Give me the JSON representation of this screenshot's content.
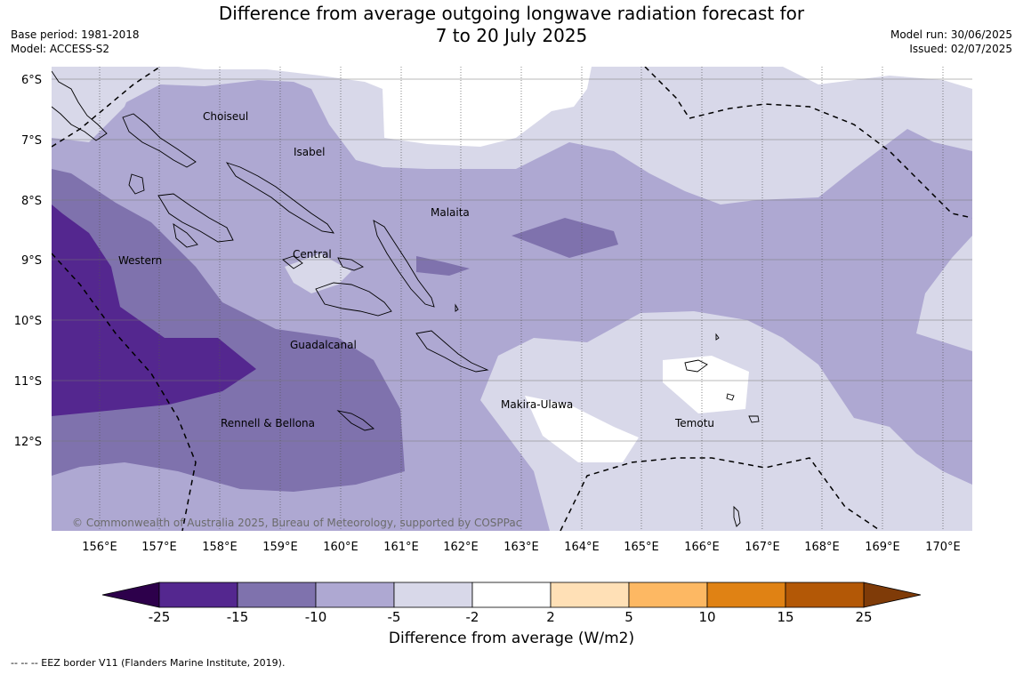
{
  "header": {
    "title_line1": "Difference from average outgoing longwave radiation forecast for",
    "title_line2": "7 to 20 July 2025",
    "base_period": "Base period: 1981-2018",
    "model": "Model: ACCESS-S2",
    "model_run": "Model run: 30/06/2025",
    "issued": "Issued: 02/07/2025"
  },
  "map": {
    "lat_labels": [
      "6°S",
      "7°S",
      "8°S",
      "9°S",
      "10°S",
      "11°S",
      "12°S"
    ],
    "lon_labels": [
      "156°E",
      "157°E",
      "158°E",
      "159°E",
      "160°E",
      "161°E",
      "162°E",
      "163°E",
      "164°E",
      "165°E",
      "166°E",
      "167°E",
      "168°E",
      "169°E",
      "170°E"
    ],
    "region_labels": {
      "choiseul": "Choiseul",
      "isabel": "Isabel",
      "malaita": "Malaita",
      "central": "Central",
      "western": "Western",
      "guadalcanal": "Guadalcanal",
      "makira": "Makira-Ulawa",
      "temotu": "Temotu",
      "rennell": "Rennell & Bellona"
    },
    "copyright": "© Commonwealth of Australia 2025, Bureau of Meteorology, supported by COSPPac"
  },
  "colorbar": {
    "ticks": [
      "-25",
      "-15",
      "-10",
      "-5",
      "-2",
      "2",
      "5",
      "10",
      "15",
      "25"
    ],
    "colors": [
      "#54278f",
      "#7f72ad",
      "#aea8d2",
      "#d8d8e9",
      "#ffffff",
      "#ffe0b6",
      "#fdb863",
      "#e08214",
      "#b35806"
    ],
    "under_color": "#2d004b",
    "over_color": "#7f3b08",
    "label": "Difference from average (W/m2)"
  },
  "legend": {
    "eez_note": "--  --  -- EEZ border V11 (Flanders Marine Institute, 2019)."
  }
}
